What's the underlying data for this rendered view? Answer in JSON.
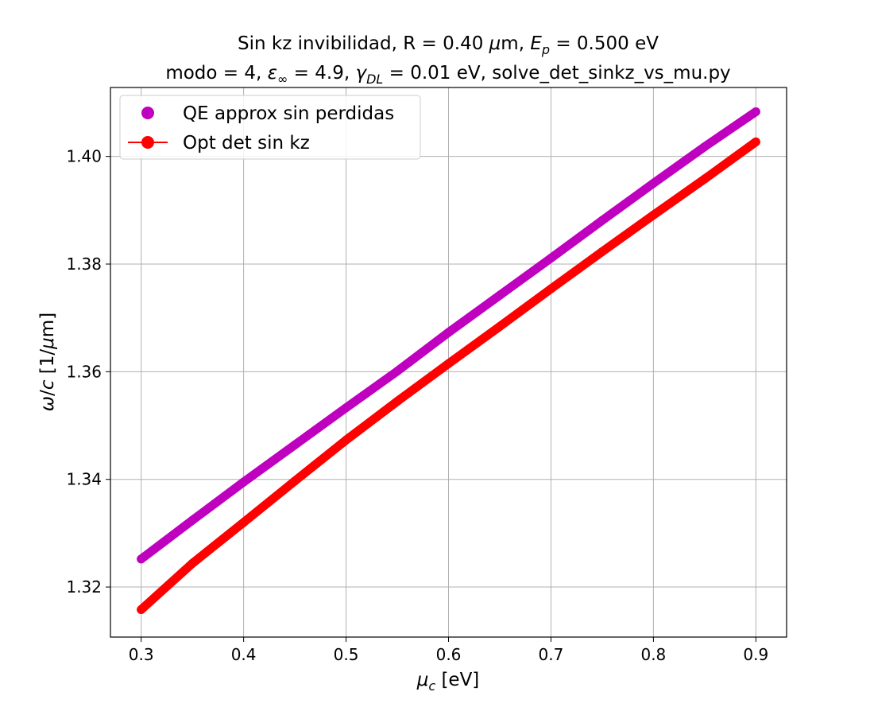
{
  "chart_data": {
    "type": "line",
    "title_line1": "Sin kz invibilidad, R = 0.40 μm, E_p = 0.500 eV",
    "title_line2": "modo = 4, ε_∞ = 4.9, γ_DL = 0.01 eV, solve_det_sinkz_vs_mu.py",
    "xlabel": "μ_c [eV]",
    "ylabel": "ω/c [1/μm]",
    "xlim": [
      0.27,
      0.93
    ],
    "ylim": [
      1.3107,
      1.4128
    ],
    "xticks": [
      0.3,
      0.4,
      0.5,
      0.6,
      0.7,
      0.8,
      0.9
    ],
    "xtick_labels": [
      "0.3",
      "0.4",
      "0.5",
      "0.6",
      "0.7",
      "0.8",
      "0.9"
    ],
    "yticks": [
      1.32,
      1.34,
      1.36,
      1.38,
      1.4
    ],
    "ytick_labels": [
      "1.32",
      "1.34",
      "1.36",
      "1.38",
      "1.40"
    ],
    "grid": true,
    "legend_position": "top-left",
    "x": [
      0.3,
      0.35,
      0.4,
      0.45,
      0.5,
      0.55,
      0.6,
      0.65,
      0.7,
      0.75,
      0.8,
      0.85,
      0.9
    ],
    "series": [
      {
        "name": "QE approx sin perdidas",
        "color": "#bf00bf",
        "style": "markers",
        "values": [
          1.3252,
          1.3324,
          1.3395,
          1.3464,
          1.3533,
          1.3601,
          1.3673,
          1.3742,
          1.3811,
          1.3881,
          1.395,
          1.4018,
          1.4083
        ]
      },
      {
        "name": "Opt det sin kz",
        "color": "#ff0000",
        "style": "line-markers",
        "values": [
          1.3158,
          1.3244,
          1.332,
          1.3397,
          1.3473,
          1.3545,
          1.3615,
          1.3684,
          1.3754,
          1.3823,
          1.3891,
          1.3958,
          1.4027
        ]
      }
    ]
  }
}
